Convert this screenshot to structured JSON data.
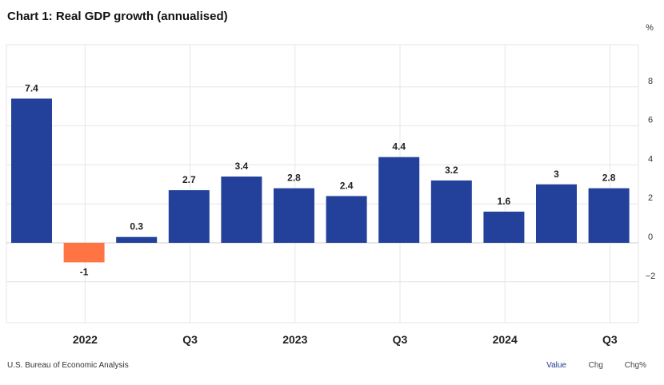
{
  "title": "Chart 1: Real GDP growth (annualised)",
  "footer": {
    "source": "U.S. Bureau of Economic Analysis",
    "tabs": [
      "Value",
      "Chg",
      "Chg%"
    ]
  },
  "colors": {
    "positive": "#23409a",
    "negative": "#ff7442",
    "grid": "#e6e6e6",
    "active_tab": "#1f3b8f"
  },
  "chart_data": {
    "type": "bar",
    "title": "Chart 1: Real GDP growth (annualised)",
    "unit": "%",
    "values": [
      7.4,
      -1,
      0.3,
      2.7,
      3.4,
      2.8,
      2.4,
      4.4,
      3.2,
      1.6,
      3,
      2.8
    ],
    "data_labels": [
      "7.4",
      "-1",
      "0.3",
      "2.7",
      "3.4",
      "2.8",
      "2.4",
      "4.4",
      "3.2",
      "1.6",
      "3",
      "2.8"
    ],
    "x_tick_labels": [
      {
        "bar_index": 1.5,
        "label": "2022"
      },
      {
        "bar_index": 3.5,
        "label": "Q3"
      },
      {
        "bar_index": 5.5,
        "label": "2023"
      },
      {
        "bar_index": 7.5,
        "label": "Q3"
      },
      {
        "bar_index": 9.5,
        "label": "2024"
      },
      {
        "bar_index": 11.5,
        "label": "Q3"
      }
    ],
    "y_ticks": [
      8,
      6,
      4,
      2,
      0,
      -2
    ],
    "y_tick_labels": [
      "8",
      "6",
      "4",
      "2",
      "0",
      "−2"
    ],
    "ylim": [
      -4,
      10
    ],
    "grid": true,
    "y_axis_position": "right"
  }
}
